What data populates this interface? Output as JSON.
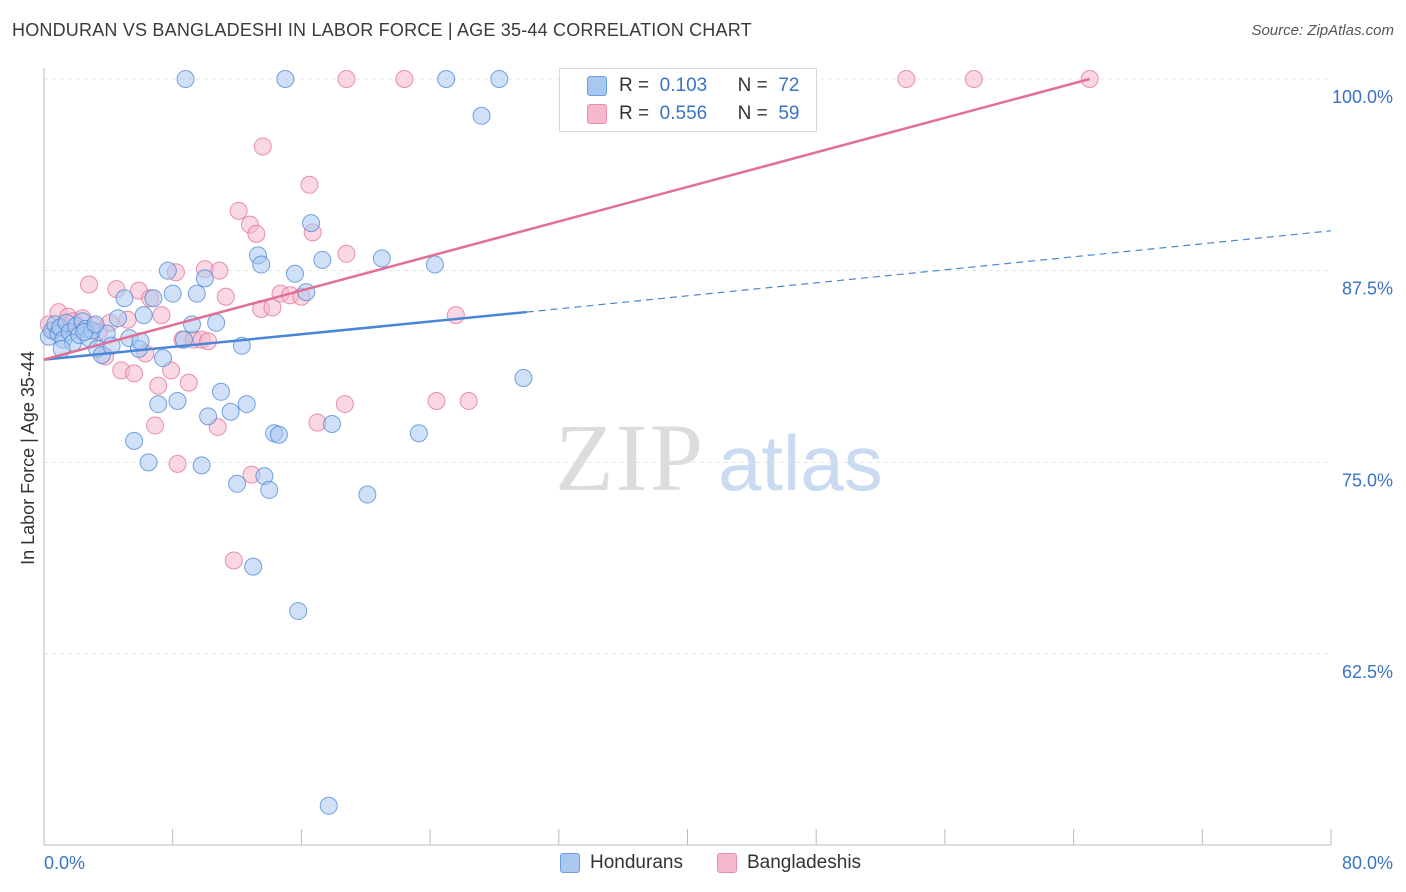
{
  "title": "HONDURAN VS BANGLADESHI IN LABOR FORCE | AGE 35-44 CORRELATION CHART",
  "source": "Source: ZipAtlas.com",
  "watermark": {
    "zip": "ZIP",
    "atlas": "atlas"
  },
  "legend": {
    "r_label": "R =",
    "n_label": "N =",
    "rows": [
      {
        "r": "0.103",
        "n": "72",
        "color": "#a9c8f0"
      },
      {
        "r": "0.556",
        "n": "59",
        "color": "#f6b8cc"
      }
    ]
  },
  "chart_data": {
    "type": "scatter",
    "title": "HONDURAN VS BANGLADESHI IN LABOR FORCE | AGE 35-44 CORRELATION CHART",
    "xlabel": "",
    "ylabel": "In Labor Force | Age 35-44",
    "xlim": [
      0,
      80
    ],
    "ylim": [
      51.5,
      101.5
    ],
    "x_tick_labels": [
      "0.0%",
      "80.0%"
    ],
    "y_ticks": [
      62.5,
      75.0,
      87.5,
      100.0
    ],
    "y_tick_labels": [
      "62.5%",
      "75.0%",
      "87.5%",
      "100.0%"
    ],
    "grid": true,
    "series": [
      {
        "name": "Hondurans",
        "color": "#4a86d6",
        "fill": "#a9c8f0",
        "trend": {
          "x0": 0,
          "y0": 81.7,
          "x1": 30,
          "y1": 84.8,
          "dash_to_x": 80,
          "dash_to_y": 90.1
        },
        "points": [
          [
            0.3,
            83.2
          ],
          [
            0.5,
            83.6
          ],
          [
            0.7,
            84.0
          ],
          [
            0.9,
            83.4
          ],
          [
            1.0,
            83.8
          ],
          [
            1.2,
            83.0
          ],
          [
            1.4,
            84.1
          ],
          [
            1.6,
            83.5
          ],
          [
            1.8,
            82.8
          ],
          [
            2.0,
            83.9
          ],
          [
            2.2,
            83.3
          ],
          [
            2.4,
            84.2
          ],
          [
            2.6,
            83.7
          ],
          [
            2.8,
            83.1
          ],
          [
            3.0,
            83.6
          ],
          [
            3.3,
            82.4
          ],
          [
            3.6,
            82.0
          ],
          [
            3.9,
            83.4
          ],
          [
            4.2,
            82.6
          ],
          [
            4.6,
            84.4
          ],
          [
            5.0,
            85.7
          ],
          [
            5.3,
            83.1
          ],
          [
            5.6,
            76.4
          ],
          [
            5.9,
            82.4
          ],
          [
            6.2,
            84.6
          ],
          [
            6.5,
            75.0
          ],
          [
            6.8,
            85.7
          ],
          [
            7.1,
            78.8
          ],
          [
            7.4,
            81.8
          ],
          [
            7.7,
            87.5
          ],
          [
            8.0,
            86.0
          ],
          [
            8.3,
            79.0
          ],
          [
            8.7,
            83.0
          ],
          [
            9.2,
            84.0
          ],
          [
            9.5,
            86.0
          ],
          [
            9.8,
            74.8
          ],
          [
            10.0,
            87.0
          ],
          [
            10.2,
            78.0
          ],
          [
            10.7,
            84.1
          ],
          [
            11.0,
            79.6
          ],
          [
            11.6,
            78.3
          ],
          [
            12.0,
            73.6
          ],
          [
            12.3,
            82.6
          ],
          [
            12.6,
            78.8
          ],
          [
            13.0,
            68.2
          ],
          [
            13.3,
            88.5
          ],
          [
            13.5,
            87.9
          ],
          [
            13.7,
            74.1
          ],
          [
            14.0,
            73.2
          ],
          [
            14.3,
            76.9
          ],
          [
            14.6,
            76.8
          ],
          [
            15.6,
            87.3
          ],
          [
            15.8,
            65.3
          ],
          [
            16.3,
            86.1
          ],
          [
            16.6,
            90.6
          ],
          [
            17.3,
            88.2
          ],
          [
            17.7,
            52.6
          ],
          [
            17.9,
            77.5
          ],
          [
            20.1,
            72.9
          ],
          [
            21.0,
            88.3
          ],
          [
            23.3,
            76.9
          ],
          [
            24.3,
            87.9
          ],
          [
            27.2,
            97.6
          ],
          [
            29.8,
            80.5
          ],
          [
            8.8,
            100.0
          ],
          [
            15.0,
            100.0
          ],
          [
            25.0,
            100.0
          ],
          [
            28.3,
            100.0
          ],
          [
            1.1,
            82.4
          ],
          [
            2.5,
            83.5
          ],
          [
            3.2,
            84.0
          ],
          [
            6.0,
            82.9
          ]
        ]
      },
      {
        "name": "Bangladeshis",
        "color": "#e26f97",
        "fill": "#f6b8cc",
        "trend": {
          "x0": 0,
          "y0": 81.7,
          "x1": 65,
          "y1": 100.0
        },
        "points": [
          [
            0.3,
            84.0
          ],
          [
            0.6,
            83.6
          ],
          [
            0.9,
            84.8
          ],
          [
            1.2,
            83.9
          ],
          [
            1.5,
            84.5
          ],
          [
            1.8,
            84.2
          ],
          [
            2.1,
            83.7
          ],
          [
            2.4,
            84.4
          ],
          [
            2.8,
            86.6
          ],
          [
            3.1,
            83.9
          ],
          [
            3.4,
            83.5
          ],
          [
            3.8,
            81.9
          ],
          [
            4.1,
            84.1
          ],
          [
            4.5,
            86.3
          ],
          [
            4.8,
            81.0
          ],
          [
            5.2,
            84.3
          ],
          [
            5.6,
            80.8
          ],
          [
            5.9,
            86.2
          ],
          [
            6.3,
            82.1
          ],
          [
            6.6,
            85.7
          ],
          [
            6.9,
            77.4
          ],
          [
            7.1,
            80.0
          ],
          [
            7.3,
            84.6
          ],
          [
            7.9,
            81.0
          ],
          [
            8.2,
            87.4
          ],
          [
            8.3,
            74.9
          ],
          [
            8.6,
            83.0
          ],
          [
            9.0,
            80.2
          ],
          [
            9.3,
            83.0
          ],
          [
            9.8,
            83.0
          ],
          [
            10.0,
            87.6
          ],
          [
            10.2,
            82.9
          ],
          [
            10.8,
            77.3
          ],
          [
            10.9,
            87.5
          ],
          [
            11.3,
            85.8
          ],
          [
            11.8,
            68.6
          ],
          [
            12.1,
            91.4
          ],
          [
            12.8,
            90.5
          ],
          [
            12.9,
            74.2
          ],
          [
            13.2,
            89.9
          ],
          [
            13.5,
            85.0
          ],
          [
            14.2,
            85.1
          ],
          [
            14.7,
            86.0
          ],
          [
            15.3,
            85.9
          ],
          [
            16.5,
            93.1
          ],
          [
            16.7,
            90.0
          ],
          [
            17.0,
            77.6
          ],
          [
            18.7,
            78.8
          ],
          [
            18.8,
            88.6
          ],
          [
            22.4,
            100.0
          ],
          [
            24.4,
            79.0
          ],
          [
            25.6,
            84.6
          ],
          [
            26.4,
            79.0
          ],
          [
            13.6,
            95.6
          ],
          [
            18.8,
            100.0
          ],
          [
            53.6,
            100.0
          ],
          [
            57.8,
            100.0
          ],
          [
            65.0,
            100.0
          ],
          [
            16.0,
            85.8
          ]
        ]
      }
    ]
  }
}
